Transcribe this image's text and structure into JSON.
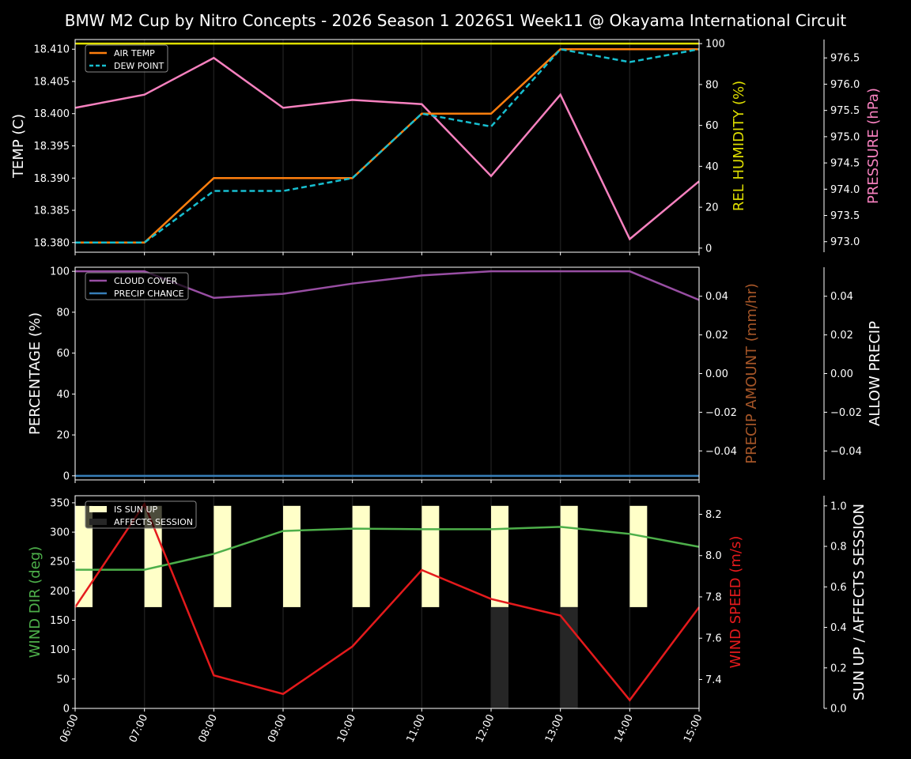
{
  "title": "BMW M2 Cup by Nitro Concepts - 2026 Season 1 2026S1 Week11 @ Okayama International Circuit",
  "colors": {
    "air_temp": "#ff7f0e",
    "dew_point": "#17becf",
    "humidity": "#dede00",
    "pressure": "#f781bf",
    "cloud_cover": "#984ea3",
    "precip_chance": "#377eb8",
    "precip_amount": "#a65628",
    "wind_dir": "#4daf4a",
    "wind_speed": "#e41a1c",
    "sun_up": "#ffffc8",
    "affects_session": "#262626"
  },
  "chart_data": [
    {
      "type": "line",
      "panel": "temperature",
      "x": [
        "06:00",
        "07:00",
        "08:00",
        "09:00",
        "10:00",
        "11:00",
        "12:00",
        "13:00",
        "14:00",
        "15:00"
      ],
      "series": [
        {
          "name": "AIR TEMP",
          "axis": "left",
          "values": [
            18.38,
            18.38,
            18.39,
            18.39,
            18.39,
            18.4,
            18.4,
            18.41,
            18.41,
            18.41
          ]
        },
        {
          "name": "DEW POINT",
          "axis": "left",
          "style": "dashed",
          "values": [
            18.38,
            18.38,
            18.388,
            18.388,
            18.39,
            18.4,
            18.398,
            18.41,
            18.408,
            18.41
          ]
        },
        {
          "name": "REL HUMIDITY",
          "axis": "right1",
          "values": [
            100,
            100,
            100,
            100,
            100,
            100,
            100,
            100,
            100,
            100
          ]
        },
        {
          "name": "PRESSURE",
          "axis": "right2",
          "values": [
            975.55,
            975.8,
            976.5,
            975.55,
            975.7,
            975.62,
            974.25,
            975.8,
            973.05,
            974.15
          ]
        }
      ],
      "ylabel": "TEMP (C)",
      "ylim": [
        18.3785,
        18.4115
      ],
      "yticks": [
        "18.380",
        "18.385",
        "18.390",
        "18.395",
        "18.400",
        "18.405",
        "18.410"
      ],
      "y2label": "REL HUMIDITY (%)",
      "y2lim": [
        -2,
        102
      ],
      "y2ticks": [
        "0",
        "20",
        "40",
        "60",
        "80",
        "100"
      ],
      "y3label": "PRESSURE (hPa)",
      "y3lim": [
        972.8,
        976.85
      ],
      "y3ticks": [
        "973.0",
        "973.5",
        "974.0",
        "974.5",
        "975.0",
        "975.5",
        "976.0",
        "976.5"
      ],
      "legend": [
        "AIR TEMP",
        "DEW POINT"
      ],
      "legend_position": "upper left",
      "grid": "vertical"
    },
    {
      "type": "line",
      "panel": "precipitation",
      "x": [
        "06:00",
        "07:00",
        "08:00",
        "09:00",
        "10:00",
        "11:00",
        "12:00",
        "13:00",
        "14:00",
        "15:00"
      ],
      "series": [
        {
          "name": "CLOUD COVER",
          "axis": "left",
          "values": [
            100,
            100,
            87,
            89,
            94,
            98,
            100,
            100,
            100,
            86
          ]
        },
        {
          "name": "PRECIP CHANCE",
          "axis": "left",
          "values": [
            0,
            0,
            0,
            0,
            0,
            0,
            0,
            0,
            0,
            0
          ]
        },
        {
          "name": "PRECIP AMOUNT",
          "axis": "right1",
          "values": [
            0,
            0,
            0,
            0,
            0,
            0,
            0,
            0,
            0,
            0
          ]
        }
      ],
      "ylabel": "PERCENTAGE (%)",
      "ylim": [
        -2,
        102
      ],
      "yticks": [
        "0",
        "20",
        "40",
        "60",
        "80",
        "100"
      ],
      "y2label": "PRECIP AMOUNT (mm/hr)",
      "y2lim": [
        -0.055,
        0.055
      ],
      "y2ticks": [
        "−0.04",
        "−0.02",
        "0.00",
        "0.02",
        "0.04"
      ],
      "y3label": "ALLOW PRECIP",
      "y3lim": [
        -0.055,
        0.055
      ],
      "y3ticks": [
        "−0.04",
        "−0.02",
        "0.00",
        "0.02",
        "0.04"
      ],
      "legend": [
        "CLOUD COVER",
        "PRECIP CHANCE"
      ],
      "legend_position": "upper left",
      "grid": "vertical"
    },
    {
      "type": "line",
      "panel": "wind",
      "x": [
        "06:00",
        "07:00",
        "08:00",
        "09:00",
        "10:00",
        "11:00",
        "12:00",
        "13:00",
        "14:00",
        "15:00"
      ],
      "series": [
        {
          "name": "WIND DIR",
          "axis": "left",
          "values": [
            236,
            236,
            263,
            302,
            306,
            305,
            305,
            309,
            297,
            275
          ]
        },
        {
          "name": "WIND SPEED",
          "axis": "right1",
          "values": [
            7.75,
            8.25,
            7.42,
            7.33,
            7.56,
            7.93,
            7.79,
            7.71,
            7.3,
            7.75
          ]
        },
        {
          "name": "IS SUN UP",
          "axis": "right2",
          "type": "bar",
          "values": [
            1,
            1,
            1,
            1,
            1,
            1,
            1,
            1,
            1,
            0
          ]
        },
        {
          "name": "AFFECTS SESSION",
          "axis": "right2",
          "type": "bar",
          "values": [
            0,
            0,
            0,
            0,
            0,
            0,
            1,
            1,
            0,
            0
          ]
        }
      ],
      "ylabel": "WIND DIR (deg)",
      "ylim": [
        0,
        362
      ],
      "yticks": [
        "0",
        "50",
        "100",
        "150",
        "200",
        "250",
        "300",
        "350"
      ],
      "y2label": "WIND SPEED (m/s)",
      "y2lim": [
        7.26,
        8.29
      ],
      "y2ticks": [
        "7.4",
        "7.6",
        "7.8",
        "8.0",
        "8.2"
      ],
      "y3label": "SUN UP / AFFECTS SESSION",
      "y3lim": [
        0,
        1.05
      ],
      "y3ticks": [
        "0.0",
        "0.2",
        "0.4",
        "0.6",
        "0.8",
        "1.0"
      ],
      "legend": [
        "IS SUN UP",
        "AFFECTS SESSION"
      ],
      "legend_position": "upper left",
      "xlabel_rotation": 65,
      "grid": "vertical"
    }
  ]
}
